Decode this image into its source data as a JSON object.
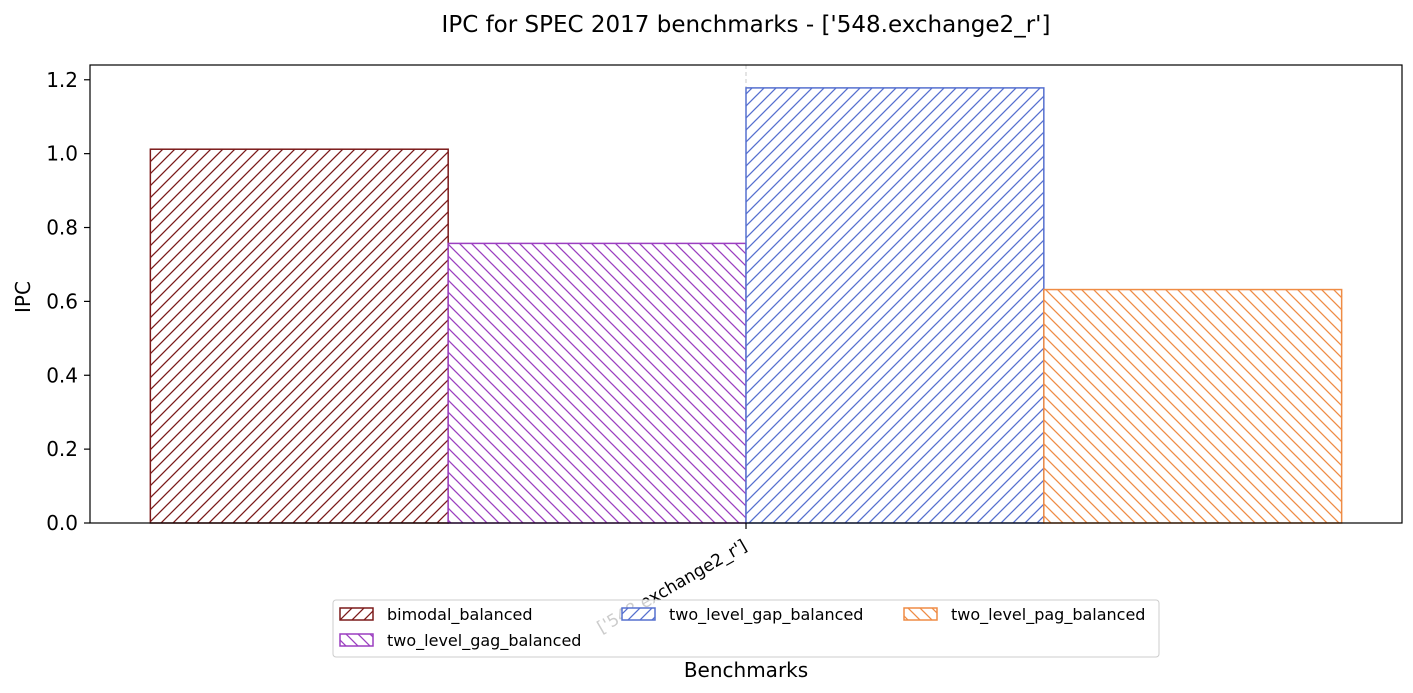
{
  "chart_data": {
    "type": "bar",
    "title": "IPC for SPEC 2017 benchmarks - ['548.exchange2_r']",
    "xlabel": "Benchmarks",
    "ylabel": "IPC",
    "ylim": [
      0,
      1.24
    ],
    "yticks": [
      "0.0",
      "0.2",
      "0.4",
      "0.6",
      "0.8",
      "1.0",
      "1.2"
    ],
    "categories": [
      "['548.exchange2_r']"
    ],
    "series": [
      {
        "name": "bimodal_balanced",
        "values": [
          1.012
        ],
        "color": "#7b1a1a",
        "hatch": "forward"
      },
      {
        "name": "two_level_gag_balanced",
        "values": [
          0.757
        ],
        "color": "#9b3fc0",
        "hatch": "back"
      },
      {
        "name": "two_level_gap_balanced",
        "values": [
          1.178
        ],
        "color": "#5670cf",
        "hatch": "forward"
      },
      {
        "name": "two_level_pag_balanced",
        "values": [
          0.632
        ],
        "color": "#ef8c45",
        "hatch": "back"
      }
    ],
    "grid": "x-dashed",
    "legend": {
      "placement": "bottom-center",
      "columns": 3
    }
  }
}
